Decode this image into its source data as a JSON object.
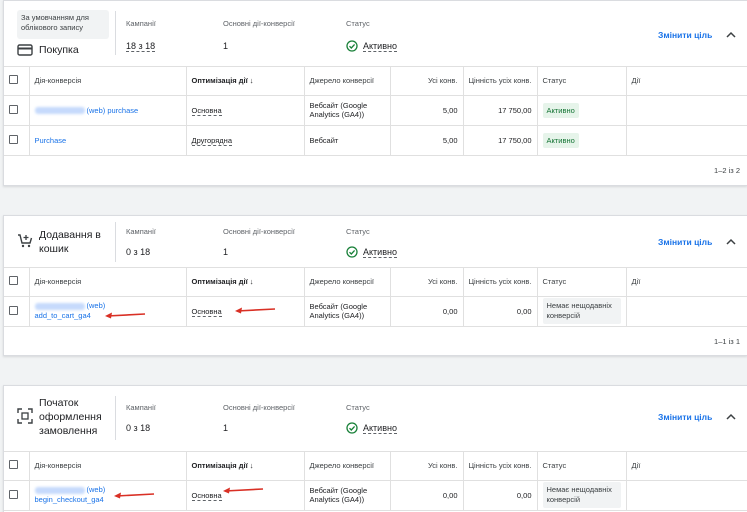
{
  "header_labels": {
    "campaigns": "Кампанії",
    "primary_conversions": "Основні дії-конверсії",
    "status": "Статус",
    "change_goal": "Змінити ціль"
  },
  "table_headers": {
    "action": "Дія-конверсія",
    "optimization": "Оптимізація дії",
    "sort_arrow": "↓",
    "source": "Джерело конверсії",
    "all_conv": "Усі конв.",
    "value_all": "Цінність усіх конв.",
    "status": "Статус",
    "actions": "Дії"
  },
  "colors": {
    "accent": "#1a73e8",
    "active_green": "#188038",
    "arrow_red": "#d93025"
  },
  "goals": [
    {
      "default_badge": "За умовчанням для облікового запису",
      "icon": "credit-card-icon",
      "name": "Покупка",
      "campaigns": "18 з 18",
      "primary": "1",
      "status": "Активно",
      "rows": [
        {
          "name": "(web) purchase",
          "opt": "Основна",
          "source": "Вебсайт (Google Analytics (GA4))",
          "conv": "5,00",
          "value": "17 750,00",
          "status": "Активно"
        },
        {
          "name": "Purchase",
          "opt": "Другорядна",
          "source": "Вебсайт",
          "conv": "5,00",
          "value": "17 750,00",
          "status": "Активно"
        }
      ],
      "pagination": "1–2 із 2"
    },
    {
      "icon": "cart-add-icon",
      "name": "Додавання в кошик",
      "campaigns": "0 з 18",
      "primary": "1",
      "status": "Активно",
      "rows": [
        {
          "name_prefix": "(web)",
          "name": "add_to_cart_ga4",
          "opt": "Основна",
          "source": "Вебсайт (Google Analytics (GA4))",
          "conv": "0,00",
          "value": "0,00",
          "status": "Немає нещодавніх конверсій"
        }
      ],
      "pagination": "1–1 із 1"
    },
    {
      "icon": "checkout-scan-icon",
      "name": "Початок оформлення замовлення",
      "campaigns": "0 з 18",
      "primary": "1",
      "status": "Активно",
      "rows": [
        {
          "name_prefix": "(web)",
          "name": "begin_checkout_ga4",
          "opt": "Основна",
          "source": "Вебсайт (Google Analytics (GA4))",
          "conv": "0,00",
          "value": "0,00",
          "status": "Немає нещодавніх конверсій"
        }
      ]
    }
  ]
}
